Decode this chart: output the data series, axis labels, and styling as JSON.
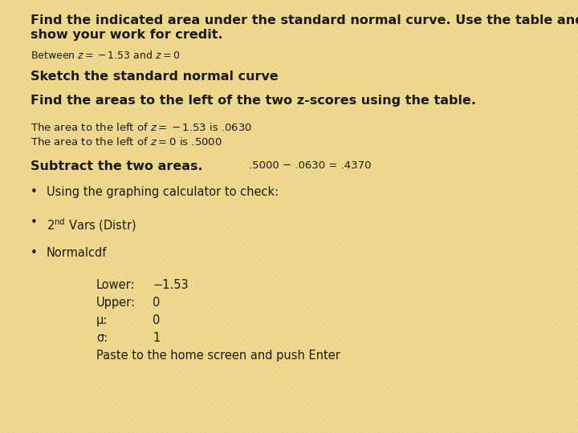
{
  "background_color": "#f0d990",
  "line_color": "#e8d070",
  "title_line1": "Find the indicated area under the standard normal curve. Use the table and",
  "title_line2": "show your work for credit.",
  "sketch_text": "Sketch the standard normal curve",
  "find_text": "Find the areas to the left of the two z-scores using the table.",
  "subtract_label": "Subtract the two areas.",
  "subtract_eq": ".5000 − .0630 = .4370",
  "bullet1": "Using the graphing calculator to check:",
  "bullet3": "Normalcdf",
  "lower_label": "Lower:",
  "lower_val": "−1.53",
  "upper_label": "Upper:",
  "upper_val": "0",
  "mu_label": "μ:",
  "mu_val": "0",
  "sigma_label": "σ:",
  "sigma_val": "1",
  "paste_text": "Paste to the home screen and push Enter",
  "fs_title": 11.5,
  "fs_body": 10.5,
  "fs_small": 9.5,
  "fs_between": 9.0
}
